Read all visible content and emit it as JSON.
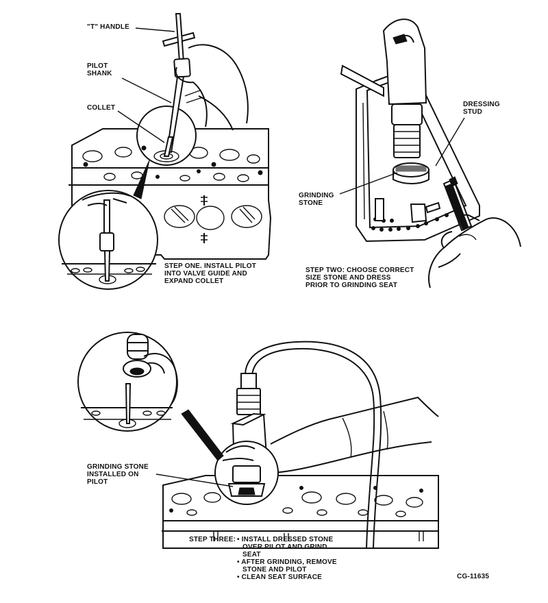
{
  "labels": {
    "t_handle": "\"T\" HANDLE",
    "pilot_shank": [
      "PILOT",
      "SHANK"
    ],
    "collet": "COLLET",
    "dressing_stud": [
      "DRESSING",
      "STUD"
    ],
    "grinding_stone": [
      "GRINDING",
      "STONE"
    ],
    "stone_installed": [
      "GRINDING STONE",
      "INSTALLED ON",
      "PILOT"
    ]
  },
  "steps": {
    "one": [
      "STEP ONE. INSTALL PILOT",
      "INTO VALVE GUIDE AND",
      "EXPAND COLLET"
    ],
    "two": [
      "STEP TWO: CHOOSE CORRECT",
      "SIZE STONE AND DRESS",
      "PRIOR TO GRINDING SEAT"
    ],
    "three_title": "STEP THREE:",
    "three_items": [
      "• INSTALL DRESSED STONE",
      "OVER PILOT AND GRIND",
      "SEAT",
      "• AFTER GRINDING, REMOVE",
      "STONE AND PILOT",
      "• CLEAN SEAT SURFACE"
    ]
  },
  "figure_id": "CG-11635"
}
